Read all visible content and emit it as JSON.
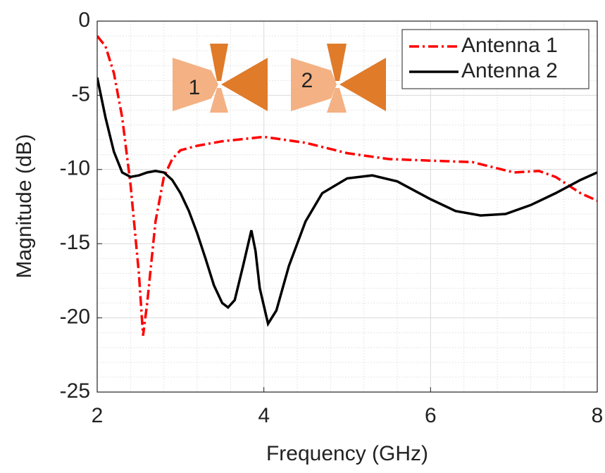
{
  "chart_data": {
    "type": "line",
    "xlabel": "Frequency (GHz)",
    "ylabel": "Magnitude (dB)",
    "xlim": [
      2,
      8
    ],
    "xticks": [
      2,
      4,
      6,
      8
    ],
    "ylim": [
      -25,
      0
    ],
    "yticks": [
      -25,
      -20,
      -15,
      -10,
      -5,
      0
    ],
    "grid": true,
    "minor_grid": true,
    "legend": "upper right",
    "annotations": [
      "1",
      "2"
    ],
    "series": [
      {
        "name": "Antenna 1",
        "color": "#ff0000",
        "style": "dashdot",
        "x": [
          2.0,
          2.1,
          2.2,
          2.3,
          2.4,
          2.5,
          2.55,
          2.6,
          2.7,
          2.8,
          2.9,
          3.0,
          3.2,
          3.5,
          4.0,
          4.5,
          5.0,
          5.5,
          6.0,
          6.5,
          7.0,
          7.3,
          7.5,
          7.8,
          8.0
        ],
        "values": [
          -1,
          -1.7,
          -3.5,
          -6.5,
          -11,
          -17,
          -21.2,
          -19,
          -13.5,
          -10.5,
          -9.3,
          -8.7,
          -8.4,
          -8.1,
          -7.8,
          -8.2,
          -8.9,
          -9.3,
          -9.4,
          -9.5,
          -10.2,
          -10.1,
          -10.5,
          -11.6,
          -12.1
        ]
      },
      {
        "name": "Antenna 2",
        "color": "#000000",
        "style": "solid",
        "x": [
          2.0,
          2.1,
          2.2,
          2.3,
          2.4,
          2.5,
          2.6,
          2.7,
          2.8,
          2.9,
          3.0,
          3.1,
          3.2,
          3.3,
          3.4,
          3.5,
          3.57,
          3.65,
          3.75,
          3.85,
          3.9,
          3.95,
          4.05,
          4.15,
          4.3,
          4.5,
          4.7,
          5.0,
          5.3,
          5.6,
          6.0,
          6.3,
          6.6,
          6.9,
          7.2,
          7.5,
          7.8,
          8.0
        ],
        "values": [
          -3.8,
          -6.5,
          -8.8,
          -10.2,
          -10.5,
          -10.4,
          -10.2,
          -10.1,
          -10.2,
          -10.7,
          -11.6,
          -12.8,
          -14.3,
          -16.0,
          -17.8,
          -19.0,
          -19.3,
          -18.8,
          -16.5,
          -14.1,
          -15.5,
          -18,
          -20.4,
          -19.5,
          -16.5,
          -13.5,
          -11.6,
          -10.6,
          -10.4,
          -10.8,
          -12.0,
          -12.8,
          -13.1,
          -13.0,
          -12.4,
          -11.6,
          -10.7,
          -10.2
        ]
      }
    ]
  }
}
